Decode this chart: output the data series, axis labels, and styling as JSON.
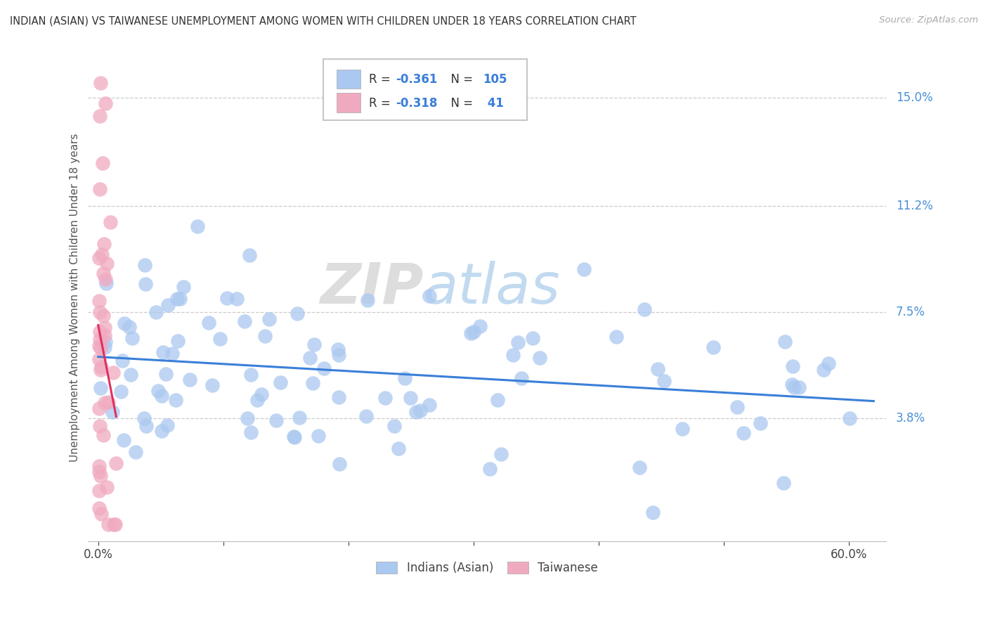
{
  "title": "INDIAN (ASIAN) VS TAIWANESE UNEMPLOYMENT AMONG WOMEN WITH CHILDREN UNDER 18 YEARS CORRELATION CHART",
  "source": "Source: ZipAtlas.com",
  "xlabel_ticks": [
    "0.0%",
    "",
    "",
    "",
    "",
    "",
    "60.0%"
  ],
  "xlabel_vals": [
    0.0,
    0.1,
    0.2,
    0.3,
    0.4,
    0.5,
    0.6
  ],
  "ylabel": "Unemployment Among Women with Children Under 18 years",
  "ylabel_ticks": [
    "3.8%",
    "7.5%",
    "11.2%",
    "15.0%"
  ],
  "ylabel_vals": [
    0.038,
    0.075,
    0.112,
    0.15
  ],
  "ylim": [
    -0.005,
    0.165
  ],
  "xlim": [
    -0.008,
    0.63
  ],
  "r_indian": -0.361,
  "n_indian": 105,
  "r_taiwanese": -0.318,
  "n_taiwanese": 41,
  "indian_color": "#aac8f0",
  "taiwanese_color": "#f0aac0",
  "indian_line_color": "#3a7fd9",
  "taiwanese_line_color": "#e03060",
  "watermark_zip": "ZIP",
  "watermark_atlas": "atlas",
  "background_color": "#ffffff",
  "grid_color": "#cccccc",
  "legend_label_indian": "Indians (Asian)",
  "legend_label_taiwanese": "Taiwanese"
}
